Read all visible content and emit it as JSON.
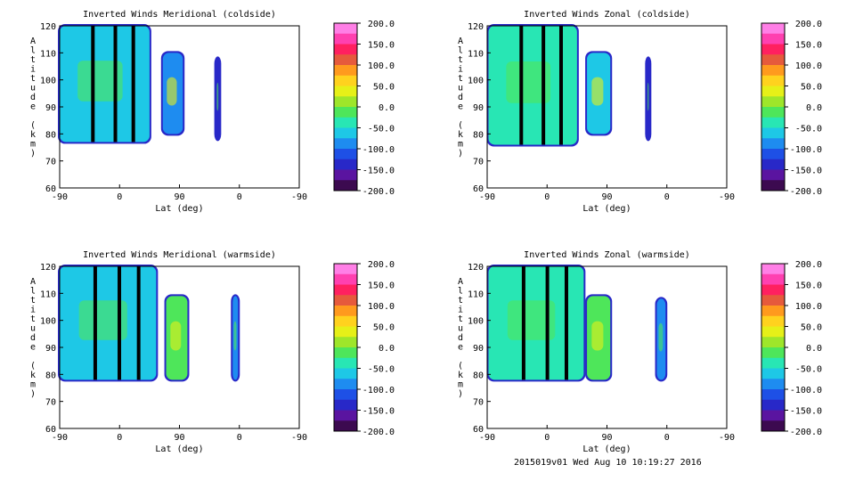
{
  "footer": "2015019v01 Wed Aug 10 10:19:27 2016",
  "colorbar": {
    "ticks": [
      "200.0",
      "150.0",
      "100.0",
      "50.0",
      "0.0",
      "-50.0",
      "-100.0",
      "-150.0",
      "-200.0"
    ],
    "colors": [
      "#ff7fe6",
      "#ff40b0",
      "#ff2060",
      "#e65a3c",
      "#ff9a1e",
      "#ffd21e",
      "#e6f018",
      "#9ee62a",
      "#4ee65a",
      "#28e6b4",
      "#1ec8e6",
      "#1e8cf0",
      "#1e50e6",
      "#2828c8",
      "#5a14a0",
      "#3c0a50"
    ]
  },
  "chart_data": [
    {
      "type": "heatmap",
      "title": "Inverted Winds Meridional (coldside)",
      "xlabel": "Lat (deg)",
      "ylabel": "Altitude (km)",
      "xticks": [
        "-90",
        "0",
        "90",
        "0",
        "-90"
      ],
      "yticks": [
        "60",
        "70",
        "80",
        "90",
        "100",
        "110",
        "120"
      ],
      "ylim": [
        60,
        120
      ],
      "panels": [
        {
          "x": [
            -90,
            45
          ],
          "alt": [
            77,
            120
          ],
          "fill": "#1ec8e6"
        },
        {
          "x": [
            65,
            95
          ],
          "alt": [
            80,
            110
          ],
          "fill": "#1e8cf0"
        },
        {
          "x": [
            145,
            150
          ],
          "alt": [
            78,
            108
          ],
          "fill": "#2828c8"
        }
      ]
    },
    {
      "type": "heatmap",
      "title": "Inverted Winds Zonal (coldside)",
      "xlabel": "Lat (deg)",
      "ylabel": "Altitude (km)",
      "xticks": [
        "-90",
        "0",
        "90",
        "0",
        "-90"
      ],
      "yticks": [
        "60",
        "70",
        "80",
        "90",
        "100",
        "110",
        "120"
      ],
      "ylim": [
        60,
        120
      ],
      "panels": [
        {
          "x": [
            -88,
            45
          ],
          "alt": [
            76,
            120
          ],
          "fill": "#28e6b4"
        },
        {
          "x": [
            60,
            95
          ],
          "alt": [
            80,
            110
          ],
          "fill": "#1ec8e6"
        },
        {
          "x": [
            150,
            154
          ],
          "alt": [
            78,
            108
          ],
          "fill": "#2828c8"
        }
      ]
    },
    {
      "type": "heatmap",
      "title": "Inverted Winds Meridional (warmside)",
      "xlabel": "Lat (deg)",
      "ylabel": "Altitude (km)",
      "xticks": [
        "-90",
        "0",
        "90",
        "0",
        "-90"
      ],
      "yticks": [
        "60",
        "70",
        "80",
        "90",
        "100",
        "110",
        "120"
      ],
      "ylim": [
        60,
        120
      ],
      "panels": [
        {
          "x": [
            -90,
            55
          ],
          "alt": [
            78,
            120
          ],
          "fill": "#1ec8e6"
        },
        {
          "x": [
            70,
            102
          ],
          "alt": [
            78,
            109
          ],
          "fill": "#4ee65a"
        },
        {
          "x": [
            170,
            178
          ],
          "alt": [
            78,
            109
          ],
          "fill": "#1e8cf0"
        }
      ]
    },
    {
      "type": "heatmap",
      "title": "Inverted Winds Zonal (warmside)",
      "xlabel": "Lat (deg)",
      "ylabel": "Altitude (km)",
      "xticks": [
        "-90",
        "0",
        "90",
        "0",
        "-90"
      ],
      "yticks": [
        "60",
        "70",
        "80",
        "90",
        "100",
        "110",
        "120"
      ],
      "ylim": [
        60,
        120
      ],
      "panels": [
        {
          "x": [
            -88,
            55
          ],
          "alt": [
            78,
            120
          ],
          "fill": "#28e6b4"
        },
        {
          "x": [
            60,
            95
          ],
          "alt": [
            78,
            109
          ],
          "fill": "#4ee65a"
        },
        {
          "x": [
            165,
            178
          ],
          "alt": [
            78,
            108
          ],
          "fill": "#1e8cf0"
        }
      ]
    }
  ]
}
